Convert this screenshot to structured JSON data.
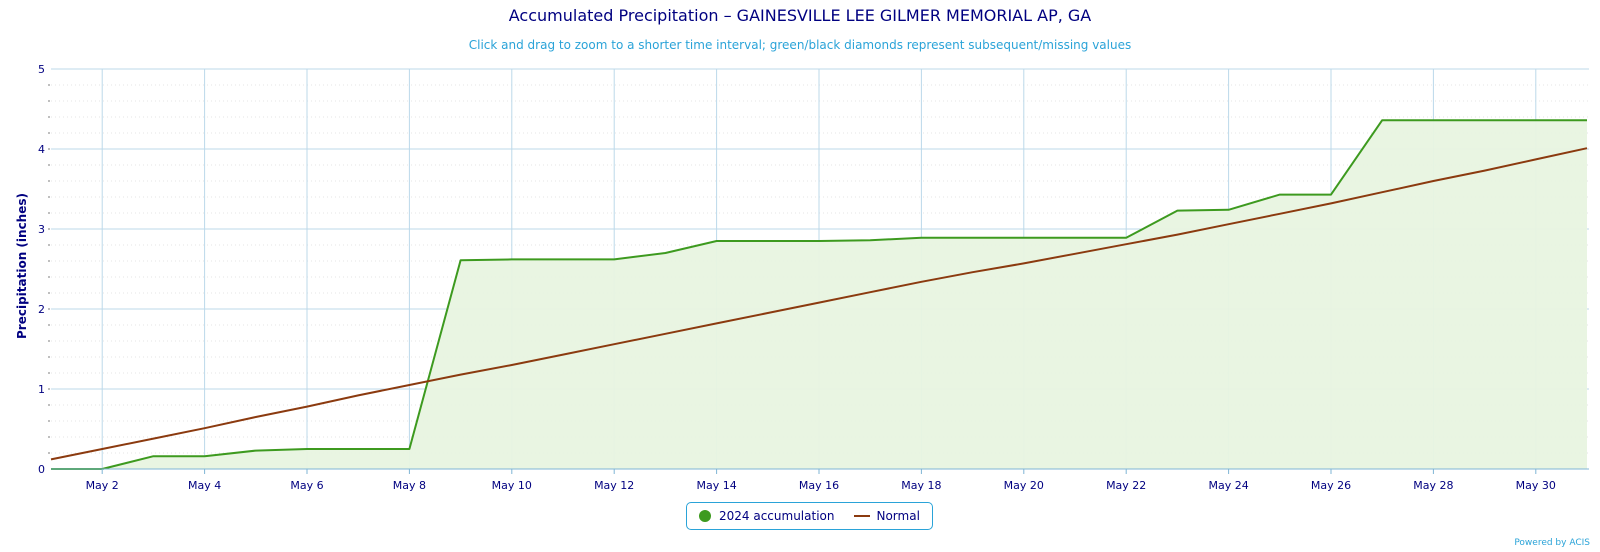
{
  "header": {
    "title": "Accumulated Precipitation – GAINESVILLE LEE GILMER MEMORIAL AP, GA",
    "subtitle": "Click and drag to zoom to a shorter time interval; green/black diamonds represent subsequent/missing values"
  },
  "chart_data": {
    "type": "line",
    "title": "Accumulated Precipitation – GAINESVILLE LEE GILMER MEMORIAL AP, GA",
    "xlabel": "",
    "ylabel": "Precipitation (inches)",
    "x_ticks": [
      "May 2",
      "May 4",
      "May 6",
      "May 8",
      "May 10",
      "May 12",
      "May 14",
      "May 16",
      "May 18",
      "May 20",
      "May 22",
      "May 24",
      "May 26",
      "May 28",
      "May 30"
    ],
    "y_ticks": [
      "0",
      "1",
      "2",
      "3",
      "4",
      "5"
    ],
    "xlim": [
      1,
      31
    ],
    "ylim": [
      0,
      5
    ],
    "grid": true,
    "legend_position": "bottom-center",
    "x_unit": "day of May",
    "series": [
      {
        "name": "2024 accumulation",
        "color": "#3d9a1f",
        "fill": "#e8f4e0",
        "style": "area-line",
        "x": [
          1,
          2,
          3,
          4,
          5,
          6,
          7,
          8,
          9,
          10,
          11,
          12,
          13,
          14,
          15,
          16,
          17,
          18,
          19,
          20,
          21,
          22,
          23,
          24,
          25,
          26,
          27,
          28,
          29,
          30,
          31
        ],
        "values": [
          0.0,
          0.0,
          0.16,
          0.16,
          0.23,
          0.25,
          0.25,
          0.25,
          2.61,
          2.62,
          2.62,
          2.62,
          2.7,
          2.85,
          2.85,
          2.85,
          2.86,
          2.89,
          2.89,
          2.89,
          2.89,
          2.89,
          3.23,
          3.24,
          3.43,
          3.43,
          4.36,
          4.36,
          4.36,
          4.36,
          4.36
        ]
      },
      {
        "name": "Normal",
        "color": "#8b3a0f",
        "style": "line",
        "x": [
          1,
          2,
          3,
          4,
          5,
          6,
          7,
          8,
          9,
          10,
          11,
          12,
          13,
          14,
          15,
          16,
          17,
          18,
          19,
          20,
          21,
          22,
          23,
          24,
          25,
          26,
          27,
          28,
          29,
          30,
          31
        ],
        "values": [
          0.12,
          0.25,
          0.38,
          0.51,
          0.65,
          0.78,
          0.92,
          1.05,
          1.18,
          1.3,
          1.43,
          1.56,
          1.69,
          1.82,
          1.95,
          2.08,
          2.21,
          2.34,
          2.46,
          2.57,
          2.69,
          2.81,
          2.93,
          3.06,
          3.19,
          3.32,
          3.46,
          3.6,
          3.73,
          3.87,
          4.01
        ]
      }
    ]
  },
  "legend": {
    "items": [
      {
        "label": "2024 accumulation",
        "color": "#3d9a1f"
      },
      {
        "label": "Normal",
        "color": "#8b3a0f"
      }
    ]
  },
  "credits": "Powered by ACIS"
}
